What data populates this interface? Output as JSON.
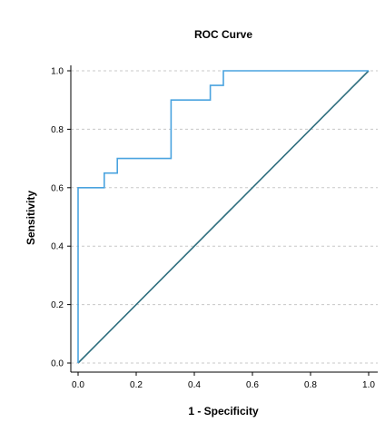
{
  "chart_data": {
    "type": "line",
    "title": "ROC Curve",
    "xlabel": "1 - Specificity",
    "ylabel": "Sensitivity",
    "xlim": [
      0.0,
      1.0
    ],
    "ylim": [
      0.0,
      1.0
    ],
    "xticks": [
      "0.0",
      "0.2",
      "0.4",
      "0.6",
      "0.8",
      "1.0"
    ],
    "yticks": [
      "0.0",
      "0.2",
      "0.4",
      "0.6",
      "0.8",
      "1.0"
    ],
    "grid": "horizontal dashed",
    "series": [
      {
        "color": "#4aa3df",
        "x": [
          0.0,
          0.0,
          0.09,
          0.09,
          0.135,
          0.135,
          0.32,
          0.32,
          0.455,
          0.455,
          0.5,
          0.5,
          1.0
        ],
        "y": [
          0.0,
          0.6,
          0.6,
          0.65,
          0.65,
          0.7,
          0.7,
          0.9,
          0.9,
          0.95,
          0.95,
          1.0,
          1.0
        ]
      },
      {
        "color": "#2e6e7e",
        "x": [
          0.0,
          1.0
        ],
        "y": [
          0.0,
          1.0
        ]
      }
    ]
  }
}
